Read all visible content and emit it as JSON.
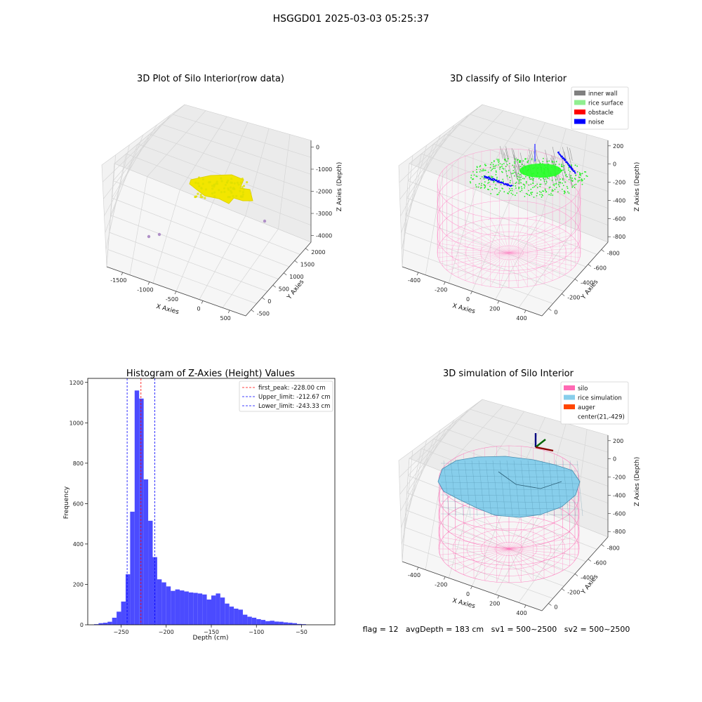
{
  "figure": {
    "suptitle": "HSGGD01 2025-03-03 05:25:37",
    "status": "flag = 12   avgDepth = 183 cm   sv1 = 500~2500   sv2 = 500~2500"
  },
  "chart_data": [
    {
      "id": "raw",
      "type": "scatter",
      "title": "3D Plot of Silo Interior(row data)",
      "xlabel": "X Axies",
      "ylabel": "Y Axies",
      "zlabel": "Z Axies (Depth)",
      "xticks": [
        "-1500",
        "-1000",
        "-500",
        "0",
        "500"
      ],
      "yticks": [
        "-500",
        "0",
        "500",
        "1000",
        "1500",
        "2000"
      ],
      "zticks": [
        "0",
        "-1000",
        "-2000",
        "-3000",
        "-4000"
      ],
      "colors": {
        "points": "#f2e600",
        "outliers": "#b08fc7"
      },
      "outliers": [
        {
          "x": -1650,
          "y": -400,
          "z": -4200
        },
        {
          "x": -1550,
          "y": -350,
          "z": -4100
        },
        {
          "x": 400,
          "y": 300,
          "z": -3600
        }
      ]
    },
    {
      "id": "classify",
      "type": "scatter",
      "title": "3D classify of Silo Interior",
      "xlabel": "X Axies",
      "ylabel": "Y Axies",
      "zlabel": "Z Axies (Depth)",
      "xticks": [
        "-400",
        "-200",
        "0",
        "200",
        "400"
      ],
      "yticks": [
        "0",
        "-200",
        "-400",
        "-600",
        "-800"
      ],
      "zticks": [
        "200",
        "0",
        "-200",
        "-400",
        "-600",
        "-800"
      ],
      "legend": [
        {
          "label": "inner wall",
          "color": "#808080"
        },
        {
          "label": "rice surface",
          "color": "#90ee90"
        },
        {
          "label": "obstacle",
          "color": "#ff0000"
        },
        {
          "label": "noise",
          "color": "#0000ff"
        }
      ],
      "legend_position": "top-right"
    },
    {
      "id": "hist",
      "type": "bar",
      "title": "Histogram of Z-Axies (Height) Values",
      "xlabel": "Depth (cm)",
      "ylabel": "Frequency",
      "xlim": [
        -287,
        -13
      ],
      "ylim": [
        0,
        1220
      ],
      "xticks": [
        -250,
        -200,
        -150,
        -100,
        -50
      ],
      "yticks": [
        0,
        200,
        400,
        600,
        800,
        1000,
        1200
      ],
      "bin_start": -280,
      "bin_width": 5,
      "values": [
        3,
        8,
        10,
        15,
        35,
        65,
        115,
        250,
        560,
        1160,
        1120,
        720,
        515,
        335,
        225,
        210,
        190,
        168,
        175,
        170,
        165,
        160,
        158,
        155,
        150,
        125,
        145,
        155,
        135,
        105,
        90,
        80,
        75,
        50,
        40,
        35,
        28,
        24,
        18,
        20,
        16,
        15,
        12,
        10,
        8,
        4,
        3
      ],
      "bar_color": "#4b4bff",
      "lines": [
        {
          "label": "first_peak: -228.00 cm",
          "x": -228.0,
          "color": "#ff0000"
        },
        {
          "label": "Upper_limit: -212.67 cm",
          "x": -212.67,
          "color": "#0000ff"
        },
        {
          "label": "Lower_limit: -243.33 cm",
          "x": -243.33,
          "color": "#0000ff"
        }
      ],
      "legend_position": "top-right"
    },
    {
      "id": "simulation",
      "type": "scatter",
      "title": "3D simulation of Silo Interior",
      "xlabel": "X Axies",
      "ylabel": "Y Axies",
      "zlabel": "Z Axies (Depth)",
      "xticks": [
        "-400",
        "-200",
        "0",
        "200",
        "400"
      ],
      "yticks": [
        "0",
        "-200",
        "-400",
        "-600",
        "-800"
      ],
      "zticks": [
        "200",
        "0",
        "-200",
        "-400",
        "-600",
        "-800"
      ],
      "legend": [
        {
          "label": "silo",
          "color": "#ff69b4"
        },
        {
          "label": "rice simulation",
          "color": "#87ceeb"
        },
        {
          "label": "auger",
          "color": "#ff4500"
        },
        {
          "label": "center(21,-429)",
          "color": ""
        }
      ],
      "legend_position": "top-right"
    }
  ]
}
